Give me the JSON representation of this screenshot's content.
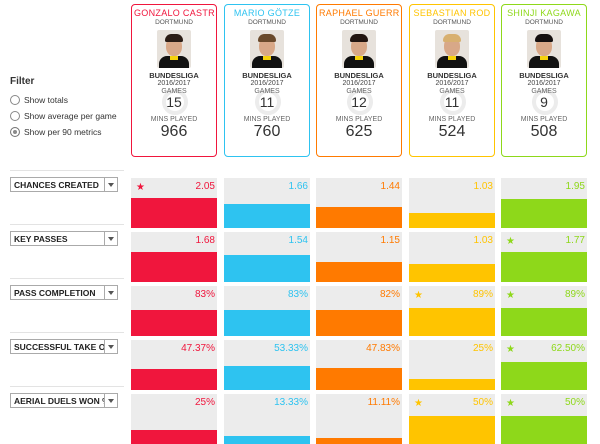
{
  "filter": {
    "title": "Filter",
    "options": [
      {
        "label": "Show totals",
        "checked": false
      },
      {
        "label": "Show average per game",
        "checked": false
      },
      {
        "label": "Show per 90 metrics",
        "checked": true
      }
    ]
  },
  "players": [
    {
      "name": "GONZALO CASTR",
      "team": "DORTMUND",
      "league": "BUNDESLIGA",
      "season": "2016/2017",
      "games_label": "GAMES",
      "games": "15",
      "mins_label": "MINS PLAYED",
      "mins": "966",
      "color": "#f0163d",
      "hair": "#2b1d16"
    },
    {
      "name": "MARIO GÖTZE",
      "team": "DORTMUND",
      "league": "BUNDESLIGA",
      "season": "2016/2017",
      "games_label": "GAMES",
      "games": "11",
      "mins_label": "MINS PLAYED",
      "mins": "760",
      "color": "#2ec3f0",
      "hair": "#6a4a2c"
    },
    {
      "name": "RAPHAEL GUERR",
      "team": "DORTMUND",
      "league": "BUNDESLIGA",
      "season": "2016/2017",
      "games_label": "GAMES",
      "games": "12",
      "mins_label": "MINS PLAYED",
      "mins": "625",
      "color": "#ff7a00",
      "hair": "#221510"
    },
    {
      "name": "SEBASTIAN ROD",
      "team": "DORTMUND",
      "league": "BUNDESLIGA",
      "season": "2016/2017",
      "games_label": "GAMES",
      "games": "11",
      "mins_label": "MINS PLAYED",
      "mins": "524",
      "color": "#ffc400",
      "hair": "#d8b070"
    },
    {
      "name": "SHINJI KAGAWA",
      "team": "DORTMUND",
      "league": "BUNDESLIGA",
      "season": "2016/2017",
      "games_label": "GAMES",
      "games": "9",
      "mins_label": "MINS PLAYED",
      "mins": "508",
      "color": "#8ed81a",
      "hair": "#151010"
    }
  ],
  "metrics": [
    {
      "label": "CHANCES CREATED",
      "values": [
        "2.05",
        "1.66",
        "1.44",
        "1.03",
        "1.95"
      ],
      "levels": [
        0.64,
        0.52,
        0.45,
        0.32,
        0.61
      ],
      "star": 0
    },
    {
      "label": "KEY PASSES",
      "values": [
        "1.68",
        "1.54",
        "1.15",
        "1.03",
        "1.77"
      ],
      "levels": [
        0.63,
        0.58,
        0.43,
        0.39,
        0.67
      ],
      "star": 4
    },
    {
      "label": "PASS COMPLETION",
      "values": [
        "83%",
        "83%",
        "82%",
        "89%",
        "89%"
      ],
      "levels": [
        0.55,
        0.55,
        0.55,
        0.6,
        0.6
      ],
      "stars": [
        3,
        4
      ]
    },
    {
      "label": "SUCCESSFUL TAKE O",
      "values": [
        "47.37%",
        "53.33%",
        "47.83%",
        "25%",
        "62.50%"
      ],
      "levels": [
        0.45,
        0.51,
        0.46,
        0.24,
        0.6
      ],
      "star": 4
    },
    {
      "label": "AERIAL DUELS WON %",
      "values": [
        "25%",
        "13.33%",
        "11.11%",
        "50%",
        "50%"
      ],
      "levels": [
        0.3,
        0.16,
        0.13,
        0.6,
        0.6
      ],
      "stars": [
        3,
        4
      ]
    }
  ]
}
